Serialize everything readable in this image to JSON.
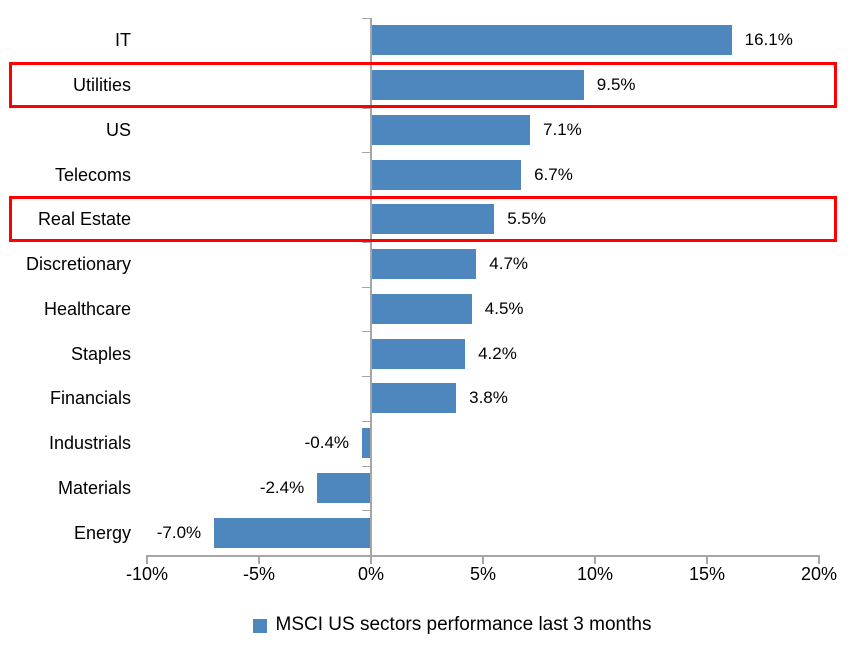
{
  "chart_data": {
    "type": "bar",
    "orientation": "horizontal",
    "series_name": "MSCI US sectors performance last 3 months",
    "categories": [
      "IT",
      "Utilities",
      "US",
      "Telecoms",
      "Real Estate",
      "Discretionary",
      "Healthcare",
      "Staples",
      "Financials",
      "Industrials",
      "Materials",
      "Energy"
    ],
    "values": [
      16.1,
      9.5,
      7.1,
      6.7,
      5.5,
      4.7,
      4.5,
      4.2,
      3.8,
      -0.4,
      -2.4,
      -7.0
    ],
    "value_labels": [
      "16.1%",
      "9.5%",
      "7.1%",
      "6.7%",
      "5.5%",
      "4.7%",
      "4.5%",
      "4.2%",
      "3.8%",
      "-0.4%",
      "-2.4%",
      "-7.0%"
    ],
    "highlighted_categories": [
      "Utilities",
      "Real Estate"
    ],
    "x_axis": {
      "min": -10,
      "max": 20,
      "ticks": [
        {
          "label": "-10%",
          "value": -10
        },
        {
          "label": "-5%",
          "value": -5
        },
        {
          "label": "0%",
          "value": 0
        },
        {
          "label": "5%",
          "value": 5
        },
        {
          "label": "10%",
          "value": 10
        },
        {
          "label": "15%",
          "value": 15
        },
        {
          "label": "20%",
          "value": 20
        }
      ],
      "grid": false
    },
    "legend": {
      "label": "MSCI US sectors performance last 3 months",
      "position": "bottom"
    },
    "colors": {
      "bar": "#4E86BE",
      "highlight_box": "#FF0000",
      "axis": "#A6A6A6",
      "text": "#000000"
    }
  }
}
